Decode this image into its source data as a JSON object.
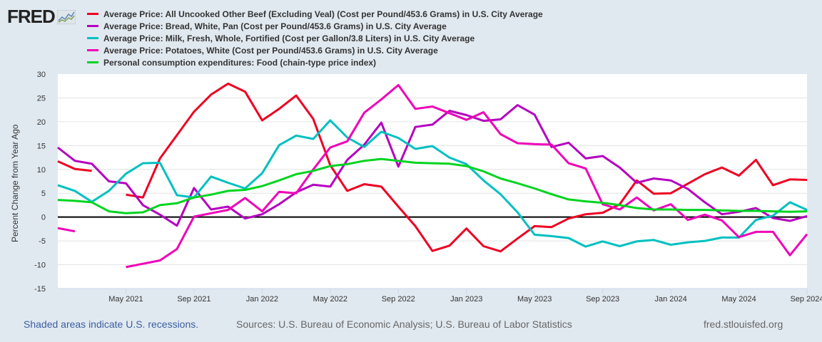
{
  "logo_text": "FRED",
  "chart_data": {
    "type": "line",
    "title": "",
    "xlabel": "",
    "ylabel": "Percent Change from Year Ago",
    "ylim": [
      -15,
      30
    ],
    "yticks": [
      30,
      25,
      20,
      15,
      10,
      5,
      0,
      -5,
      -10,
      -15
    ],
    "x_start": "2021-01",
    "x_end": "2024-09",
    "frequency": "monthly",
    "xtick_labels": [
      {
        "label": "May 2021",
        "month_index": 4
      },
      {
        "label": "Sep 2021",
        "month_index": 8
      },
      {
        "label": "Jan 2022",
        "month_index": 12
      },
      {
        "label": "May 2022",
        "month_index": 16
      },
      {
        "label": "Sep 2022",
        "month_index": 20
      },
      {
        "label": "Jan 2023",
        "month_index": 24
      },
      {
        "label": "May 2023",
        "month_index": 28
      },
      {
        "label": "Sep 2023",
        "month_index": 32
      },
      {
        "label": "Jan 2024",
        "month_index": 36
      },
      {
        "label": "May 2024",
        "month_index": 40
      },
      {
        "label": "Sep 2024",
        "month_index": 44
      }
    ],
    "grid": true,
    "legend_position": "top",
    "series": [
      {
        "name": "Average Price: All Uncooked Other Beef (Excluding Veal) (Cost per Pound/453.6 Grams) in U.S. City Average",
        "color": "#ee0022",
        "values": [
          11.7,
          10.1,
          9.7,
          null,
          4.7,
          4.1,
          12.3,
          17.2,
          22.1,
          25.7,
          28.0,
          26.3,
          20.3,
          22.7,
          25.5,
          20.6,
          10.9,
          5.5,
          6.9,
          6.4,
          2.2,
          -1.9,
          -7.1,
          -6.0,
          -2.4,
          -6.1,
          -7.2,
          -4.5,
          -1.9,
          -2.1,
          -0.3,
          0.6,
          0.9,
          2.7,
          7.7,
          4.9,
          5.0,
          7.0,
          9.0,
          10.4,
          8.7,
          12.0,
          6.7,
          7.9,
          7.8
        ]
      },
      {
        "name": "Average Price: Bread, White, Pan (Cost per Pound/453.6 Grams) in U.S. City Average",
        "color": "#b400c0",
        "values": [
          14.6,
          11.8,
          11.2,
          7.5,
          7.1,
          2.5,
          0.5,
          -1.8,
          6.1,
          1.6,
          2.2,
          -0.3,
          0.6,
          2.7,
          5.2,
          6.8,
          6.4,
          12.0,
          15.2,
          19.8,
          10.6,
          18.9,
          19.4,
          22.3,
          21.4,
          20.2,
          20.5,
          23.5,
          21.5,
          14.7,
          15.6,
          12.3,
          12.8,
          10.4,
          7.2,
          8.1,
          7.7,
          5.9,
          3.1,
          0.6,
          1.1,
          1.9,
          -0.2,
          -0.8,
          0.2
        ]
      },
      {
        "name": "Average Price: Milk, Fresh, Whole, Fortified (Cost per Gallon/3.8 Liters) in U.S. City Average",
        "color": "#00c0c0",
        "values": [
          6.7,
          5.5,
          3.2,
          5.5,
          9.1,
          11.3,
          11.4,
          4.6,
          4.1,
          8.5,
          7.2,
          6.0,
          9.2,
          15.1,
          17.1,
          16.4,
          20.3,
          16.7,
          14.7,
          17.9,
          16.6,
          14.3,
          14.9,
          12.5,
          11.1,
          7.7,
          4.8,
          1.0,
          -3.7,
          -4.0,
          -4.4,
          -6.2,
          -5.1,
          -6.1,
          -5.1,
          -4.8,
          -5.8,
          -5.3,
          -5.0,
          -4.3,
          -4.3,
          -0.6,
          0.3,
          3.1,
          1.5
        ]
      },
      {
        "name": "Average Price: Potatoes, White (Cost per Pound/453.6 Grams) in U.S. City Average",
        "color": "#f000b8",
        "values": [
          -2.3,
          -3.0,
          null,
          null,
          -10.5,
          -9.8,
          -9.1,
          -6.7,
          0.1,
          0.8,
          1.5,
          4.0,
          1.2,
          5.3,
          5.0,
          10.0,
          14.6,
          15.9,
          21.9,
          24.7,
          27.7,
          22.7,
          23.2,
          21.8,
          20.4,
          22.0,
          17.4,
          15.5,
          15.3,
          15.2,
          11.3,
          10.2,
          2.7,
          1.6,
          4.1,
          1.4,
          2.7,
          -0.6,
          0.5,
          -0.7,
          -4.2,
          -3.1,
          -3.1,
          -8.0,
          -3.6
        ]
      },
      {
        "name": "Personal consumption expenditures: Food (chain-type price index)",
        "color": "#00d420",
        "values": [
          3.6,
          3.4,
          3.1,
          1.2,
          0.8,
          1.0,
          2.5,
          2.9,
          4.1,
          4.7,
          5.5,
          5.7,
          6.5,
          7.7,
          9.0,
          9.7,
          10.7,
          11.1,
          11.8,
          12.2,
          11.8,
          11.4,
          11.3,
          11.2,
          10.7,
          9.6,
          8.1,
          7.1,
          6.0,
          4.8,
          3.7,
          3.3,
          3.0,
          2.5,
          1.9,
          1.6,
          1.6,
          1.5,
          1.5,
          1.4,
          1.3,
          1.3,
          1.2,
          1.1,
          1.2
        ]
      }
    ]
  },
  "footer": {
    "recessions_note": "Shaded areas indicate U.S. recessions.",
    "sources": "Sources: U.S. Bureau of Economic Analysis; U.S. Bureau of Labor Statistics",
    "site": "fred.stlouisfed.org"
  }
}
